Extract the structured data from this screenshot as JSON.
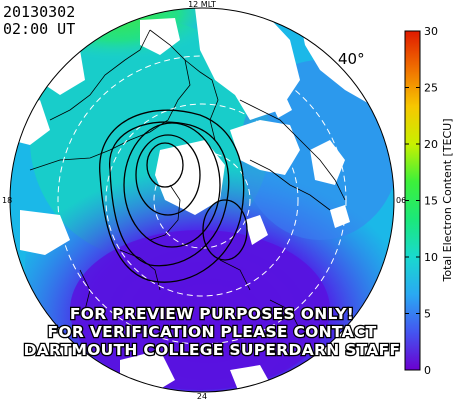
{
  "header": {
    "date": "20130302",
    "time": "02:00 UT"
  },
  "map": {
    "projection": "polar",
    "latitude_label": "40°",
    "mlt_labels": {
      "top": "12 MLT",
      "left": "18",
      "right": "06",
      "bottom": "24"
    },
    "background_color": "#ffffff",
    "coastline_color": "#000000",
    "contour_color": "#000000",
    "grid_circle_color": "#ffffff"
  },
  "colorbar": {
    "label": "Total Electron Content [TECU]",
    "ticks": [
      "0",
      "5",
      "10",
      "15",
      "20",
      "25",
      "30"
    ],
    "range": [
      0,
      30
    ],
    "colors": [
      "#6a00d0",
      "#4455f0",
      "#2aa8f2",
      "#19d9cf",
      "#1be87a",
      "#3df03a",
      "#c8f000",
      "#f7c700",
      "#f07000",
      "#e01a00"
    ]
  },
  "watermark": {
    "lines": [
      "FOR PREVIEW PURPOSES ONLY!",
      "FOR VERIFICATION PLEASE CONTACT",
      "DARTMOUTH COLLEGE SUPERDARN STAFF"
    ]
  }
}
